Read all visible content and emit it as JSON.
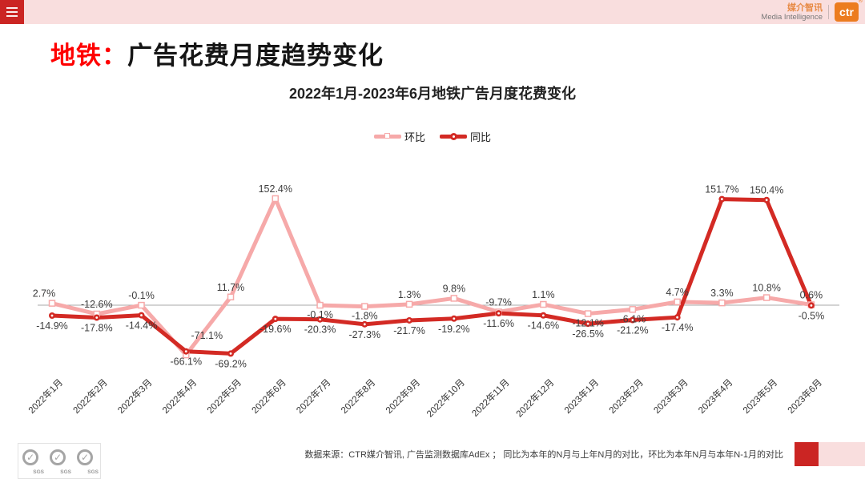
{
  "header": {
    "brand_cn": "媒介智讯",
    "brand_en": "Media Intelligence",
    "logo_text": "ctr",
    "registered_mark": "®"
  },
  "title": {
    "highlight": "地铁：",
    "text": "广告花费月度趋势变化"
  },
  "chart_data": {
    "type": "line",
    "title": "2022年1月-2023年6月地铁广告月度花费变化",
    "categories": [
      "2022年1月",
      "2022年2月",
      "2022年3月",
      "2022年4月",
      "2022年5月",
      "2022年6月",
      "2022年7月",
      "2022年8月",
      "2022年9月",
      "2022年10月",
      "2022年11月",
      "2022年12月",
      "2023年1月",
      "2023年2月",
      "2023年3月",
      "2023年4月",
      "2023年5月",
      "2023年6月"
    ],
    "series": [
      {
        "name": "环比",
        "marker": "square",
        "color": "#f6a9a9",
        "values": [
          2.7,
          -12.6,
          -0.1,
          -71.1,
          11.7,
          152.4,
          -0.1,
          -1.8,
          1.3,
          9.8,
          -9.7,
          1.1,
          -12.1,
          -6.1,
          4.7,
          3.3,
          10.8,
          0.6
        ]
      },
      {
        "name": "同比",
        "marker": "dot",
        "color": "#d32a24",
        "values": [
          -14.9,
          -17.8,
          -14.4,
          -66.1,
          -69.2,
          -19.6,
          -20.3,
          -27.3,
          -21.7,
          -19.2,
          -11.6,
          -14.6,
          -26.5,
          -21.2,
          -17.4,
          151.7,
          150.4,
          -0.5
        ]
      }
    ],
    "value_suffix": "%",
    "ylim": [
      -90,
      170
    ],
    "baseline": 0,
    "grid": false,
    "legend_position": "top"
  },
  "footer": {
    "source_text": "数据来源：CTR媒介智讯, 广告监测数据库AdEx ； 同比为本年的N月与上年N月的对比，环比为本年N月与本年N-1月的对比",
    "sgs_label": "SGS"
  },
  "colors": {
    "accent_red": "#cb2523",
    "banner_pink": "#f9dede",
    "title_red": "#ff0000",
    "brand_orange": "#e78a45",
    "logo_orange": "#ec7c1f",
    "mom_pink": "#f6a9a9",
    "yoy_red": "#d32a24"
  }
}
